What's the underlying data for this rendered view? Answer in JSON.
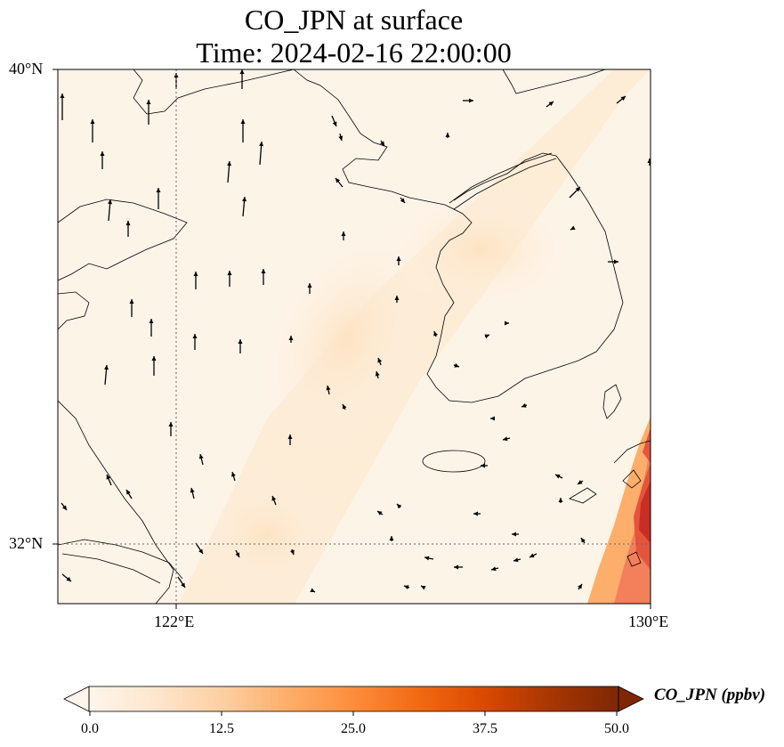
{
  "title": {
    "line1": "CO_JPN at surface",
    "line2": "Time: 2024-02-16 22:00:00"
  },
  "map": {
    "lat_range": [
      31.0,
      40.0
    ],
    "lon_range": [
      120.0,
      130.0
    ],
    "lat_ticks": [
      "40°N",
      "32°N"
    ],
    "lon_ticks": [
      "122°E",
      "130°E"
    ],
    "gridlines": "dotted"
  },
  "colorbar": {
    "label": "CO_JPN (ppbv)",
    "ticks": [
      "0.0",
      "12.5",
      "25.0",
      "37.5",
      "50.0"
    ],
    "range": [
      0.0,
      50.0
    ],
    "extend": "both",
    "colormap": [
      "#fff5eb",
      "#fee6ce",
      "#fdd0a2",
      "#fdae6b",
      "#fd8d3c",
      "#f16913",
      "#d94801",
      "#a63603",
      "#7f2704"
    ]
  },
  "wind_arrows": "present"
}
